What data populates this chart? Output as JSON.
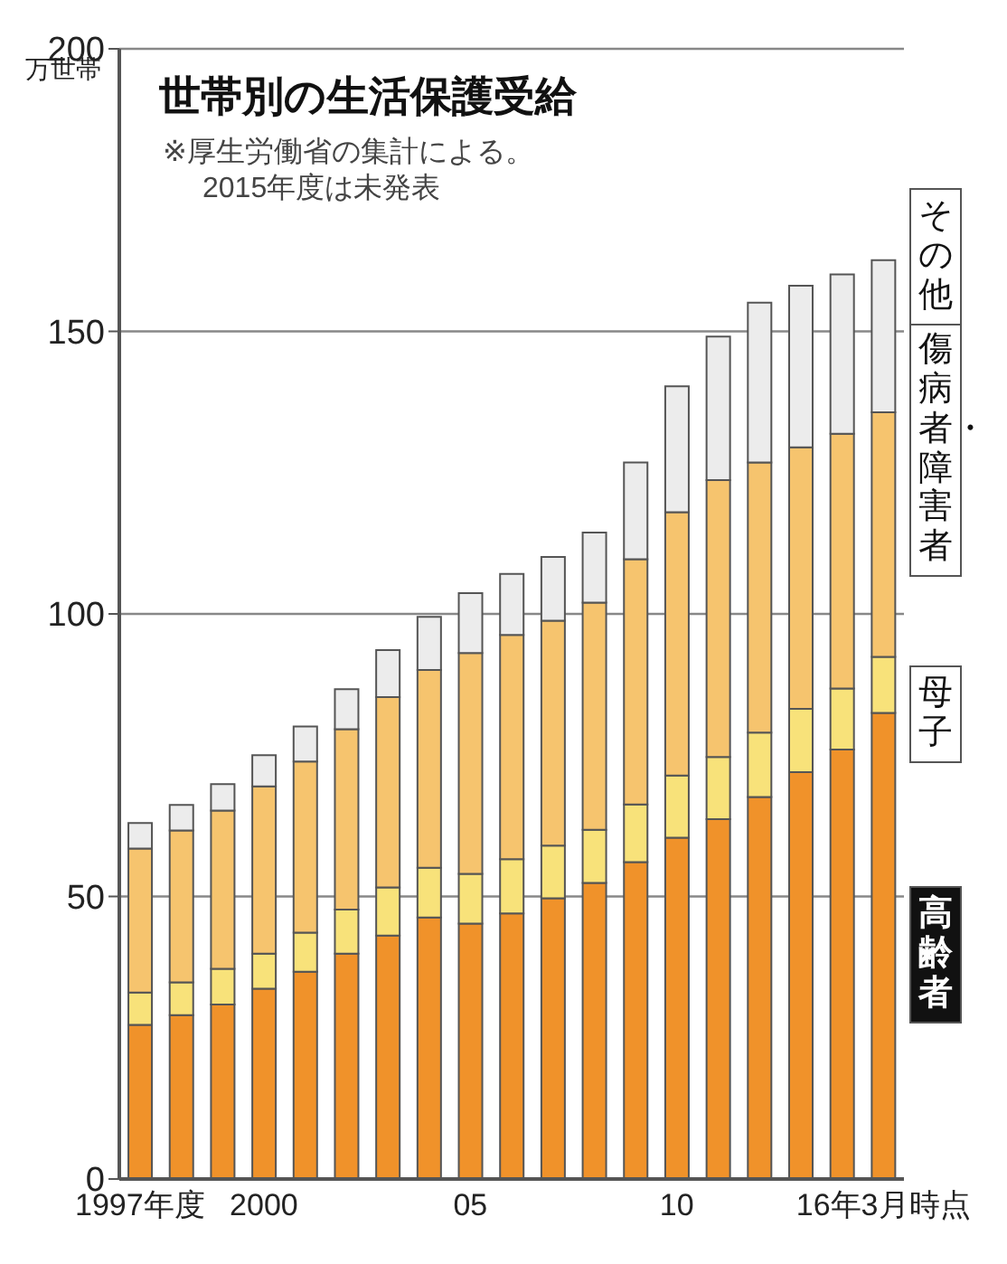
{
  "chart_data": {
    "type": "bar",
    "title": "世帯別の生活保護受給",
    "ylabel": "万世帯",
    "annotations": [
      "※厚生労働省の集計による。",
      "2015年度は未発表"
    ],
    "categories": [
      "1997年度",
      null,
      null,
      "2000",
      null,
      null,
      null,
      null,
      "05",
      null,
      null,
      null,
      null,
      "10",
      null,
      null,
      null,
      null,
      "16年3月時点"
    ],
    "stacked": true,
    "legend": "right",
    "grid": "y",
    "ylim": [
      0,
      200
    ],
    "yticks": [
      0,
      50,
      100,
      150,
      200
    ],
    "series": [
      {
        "name": "高齢者",
        "color": "#f0922a",
        "values": [
          27.3,
          29.0,
          30.9,
          33.7,
          36.7,
          39.9,
          43.1,
          46.3,
          45.2,
          47.0,
          49.7,
          52.4,
          56.1,
          60.4,
          63.7,
          67.6,
          72.0,
          76.0,
          82.5
        ]
      },
      {
        "name": "母子",
        "color": "#f8e27a",
        "values": [
          5.7,
          5.8,
          6.3,
          6.2,
          6.9,
          7.8,
          8.5,
          8.8,
          8.8,
          9.6,
          9.3,
          9.4,
          10.2,
          11.0,
          11.0,
          11.4,
          11.2,
          10.8,
          9.9
        ]
      },
      {
        "name": "傷病者・障害者",
        "color": "#f6c46e",
        "values": [
          25.5,
          26.9,
          28.0,
          29.6,
          30.3,
          31.9,
          33.7,
          35.0,
          39.1,
          39.7,
          39.8,
          40.2,
          43.4,
          46.6,
          49.0,
          47.8,
          46.3,
          45.1,
          43.3
        ]
      },
      {
        "name": "その他",
        "color": "#ececec",
        "values": [
          4.5,
          4.5,
          4.7,
          5.5,
          6.2,
          7.1,
          8.3,
          9.4,
          10.6,
          10.8,
          11.3,
          12.4,
          17.1,
          22.3,
          25.4,
          28.3,
          28.6,
          28.2,
          26.9
        ]
      }
    ]
  }
}
